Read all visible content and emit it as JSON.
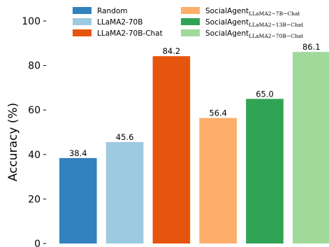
{
  "chart_data": {
    "type": "bar",
    "ylabel": "Accuracy (%)",
    "xlabel": "",
    "ylim": [
      0,
      100
    ],
    "yticks": [
      0,
      20,
      40,
      60,
      80,
      100
    ],
    "grid": false,
    "legend_position": "top",
    "series": [
      {
        "name": "Random",
        "name_sub": "",
        "value": 38.4,
        "label": "38.4",
        "color": "#3182bd"
      },
      {
        "name": "LLaMA2-70B",
        "name_sub": "",
        "value": 45.6,
        "label": "45.6",
        "color": "#9ecae1"
      },
      {
        "name": "LLaMA2-70B-Chat",
        "name_sub": "",
        "value": 84.2,
        "label": "84.2",
        "color": "#e6550d"
      },
      {
        "name": "SocialAgent",
        "name_sub": "LLaMA2−7B−Chat",
        "value": 56.4,
        "label": "56.4",
        "color": "#fdae6b"
      },
      {
        "name": "SocialAgent",
        "name_sub": "LLaMA2−13B−Chat",
        "value": 65.0,
        "label": "65.0",
        "color": "#31a354"
      },
      {
        "name": "SocialAgent",
        "name_sub": "LLaMA2−70B−Chat",
        "value": 86.1,
        "label": "86.1",
        "color": "#a1d99b"
      }
    ]
  }
}
